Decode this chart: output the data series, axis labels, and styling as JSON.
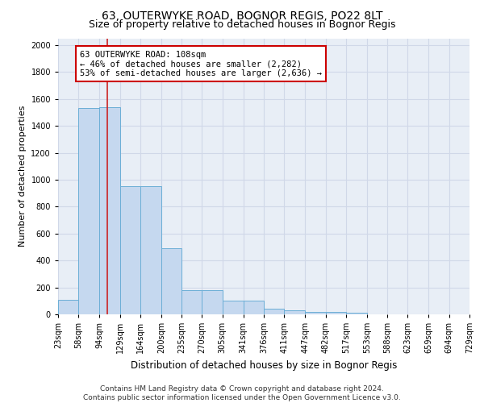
{
  "title1": "63, OUTERWYKE ROAD, BOGNOR REGIS, PO22 8LT",
  "title2": "Size of property relative to detached houses in Bognor Regis",
  "xlabel": "Distribution of detached houses by size in Bognor Regis",
  "ylabel": "Number of detached properties",
  "bar_values": [
    110,
    1530,
    1540,
    950,
    950,
    490,
    180,
    180,
    100,
    100,
    40,
    30,
    20,
    15,
    10,
    0,
    0,
    0,
    0,
    0
  ],
  "bin_edges": [
    23,
    58,
    94,
    129,
    164,
    200,
    235,
    270,
    305,
    341,
    376,
    411,
    447,
    482,
    517,
    553,
    588,
    623,
    659,
    694,
    729
  ],
  "tick_labels": [
    "23sqm",
    "58sqm",
    "94sqm",
    "129sqm",
    "164sqm",
    "200sqm",
    "235sqm",
    "270sqm",
    "305sqm",
    "341sqm",
    "376sqm",
    "411sqm",
    "447sqm",
    "482sqm",
    "517sqm",
    "553sqm",
    "588sqm",
    "623sqm",
    "659sqm",
    "694sqm",
    "729sqm"
  ],
  "bar_color": "#c5d8ef",
  "bar_edge_color": "#6baed6",
  "bg_color": "#e8eef6",
  "grid_color": "#d0d8e8",
  "red_line_x": 108,
  "annotation_line1": "63 OUTERWYKE ROAD: 108sqm",
  "annotation_line2": "← 46% of detached houses are smaller (2,282)",
  "annotation_line3": "53% of semi-detached houses are larger (2,636) →",
  "annotation_box_color": "#ffffff",
  "annotation_box_edge_color": "#cc0000",
  "ylim": [
    0,
    2050
  ],
  "yticks": [
    0,
    200,
    400,
    600,
    800,
    1000,
    1200,
    1400,
    1600,
    1800,
    2000
  ],
  "footnote": "Contains HM Land Registry data © Crown copyright and database right 2024.\nContains public sector information licensed under the Open Government Licence v3.0.",
  "title1_fontsize": 10,
  "title2_fontsize": 9,
  "xlabel_fontsize": 8.5,
  "ylabel_fontsize": 8,
  "tick_fontsize": 7,
  "annotation_fontsize": 7.5,
  "footnote_fontsize": 6.5
}
